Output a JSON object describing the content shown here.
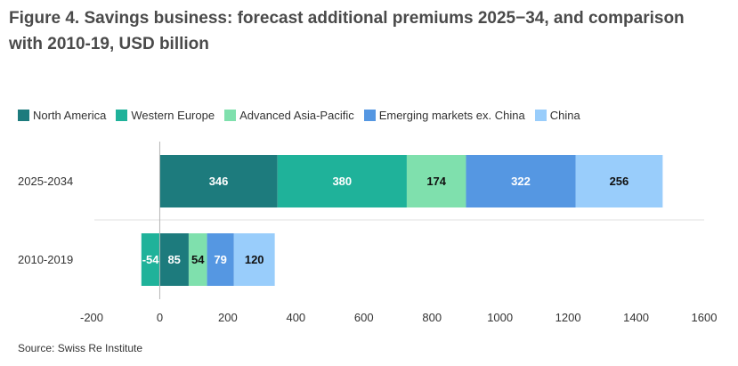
{
  "title": "Figure 4. Savings business: forecast additional premiums 2025−34, and comparison with 2010-19, USD billion",
  "source": "Source: Swiss Re Institute",
  "chart_data": {
    "type": "bar",
    "orientation": "horizontal",
    "stacked": true,
    "categories": [
      "2025-2034",
      "2010-2019"
    ],
    "series": [
      {
        "name": "North America",
        "color": "#1d7b7d",
        "values": [
          346,
          85
        ]
      },
      {
        "name": "Western Europe",
        "color": "#1fb29a",
        "values": [
          380,
          -54
        ]
      },
      {
        "name": "Advanced Asia-Pacific",
        "color": "#7fe0ad",
        "values": [
          174,
          54
        ]
      },
      {
        "name": "Emerging markets ex. China",
        "color": "#5597e2",
        "values": [
          322,
          79
        ]
      },
      {
        "name": "China",
        "color": "#99cdfb",
        "values": [
          256,
          120
        ]
      }
    ],
    "xlim": [
      -200,
      1600
    ],
    "xticks": [
      "-200",
      "0",
      "200",
      "400",
      "600",
      "800",
      "1000",
      "1200",
      "1400",
      "1600"
    ],
    "legend_position": "top-left",
    "grid": "horizontal separator"
  }
}
